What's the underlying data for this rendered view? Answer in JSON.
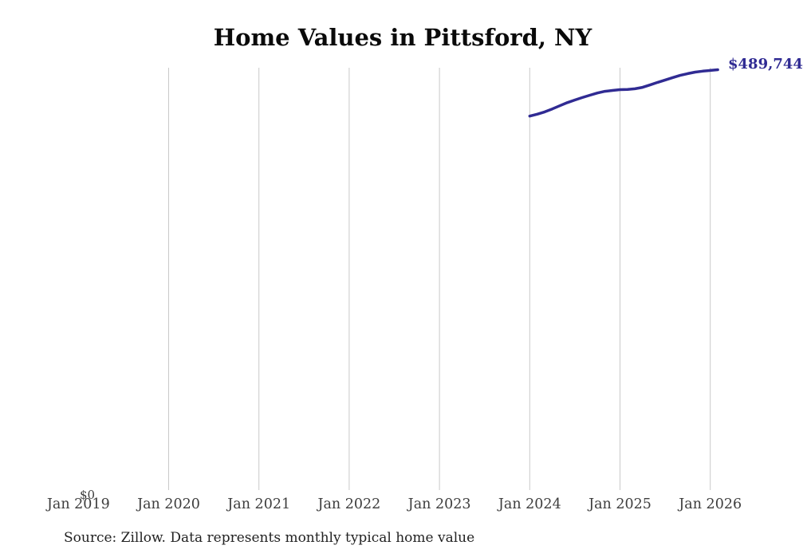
{
  "title": "Home Values in Pittsford, NY",
  "y_axis": {
    "zero_label": "$0"
  },
  "end_label": "$489,744",
  "source_note": "Source: Zillow. Data represents monthly typical home value",
  "colors": {
    "line": "#302b93",
    "grid": "#c9c9c9",
    "title": "#0a0a0a",
    "tick": "#3d3d3d",
    "end_label": "#302b93",
    "background": "#ffffff"
  },
  "chart_data": {
    "type": "line",
    "title": "Home Values in Pittsford, NY",
    "xlabel": "",
    "ylabel": "",
    "ylim": [
      0,
      492000
    ],
    "grid": "vertical-gridlines-only",
    "legend": "none",
    "x_tick_labels": [
      "Jan 2019",
      "Jan 2020",
      "Jan 2021",
      "Jan 2022",
      "Jan 2023",
      "Jan 2024",
      "Jan 2025",
      "Jan 2026"
    ],
    "gridline_months": [
      "Jan 2020",
      "Jan 2021",
      "Jan 2022",
      "Jan 2023",
      "Jan 2024",
      "Jan 2025",
      "Jan 2026"
    ],
    "series": [
      {
        "name": "Typical home value",
        "x": [
          "Jan 2024",
          "Feb 2024",
          "Mar 2024",
          "Apr 2024",
          "May 2024",
          "Jun 2024",
          "Jul 2024",
          "Aug 2024",
          "Sep 2024",
          "Oct 2024",
          "Nov 2024",
          "Dec 2024",
          "Jan 2025",
          "Feb 2025",
          "Mar 2025",
          "Apr 2025",
          "May 2025",
          "Jun 2025",
          "Jul 2025",
          "Aug 2025",
          "Sep 2025",
          "Oct 2025",
          "Nov 2025",
          "Dec 2025",
          "Jan 2026",
          "Feb 2026"
        ],
        "values": [
          436400,
          438600,
          441200,
          444600,
          448300,
          451900,
          454900,
          457700,
          460400,
          463000,
          464900,
          465900,
          466800,
          467000,
          467800,
          469500,
          472200,
          475100,
          477900,
          480600,
          483200,
          485200,
          487000,
          488100,
          488900,
          489744
        ]
      }
    ],
    "last_point_label": "$489,744"
  }
}
